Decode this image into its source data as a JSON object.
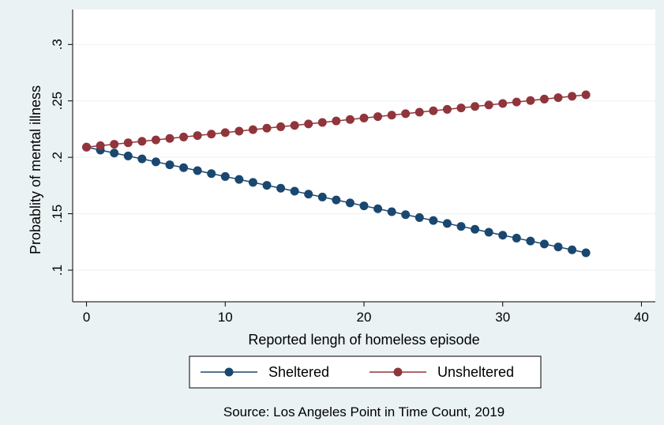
{
  "chart_data": {
    "type": "line",
    "title": "",
    "xlabel": "Reported lengh of homeless episode",
    "ylabel": "Probablity of mental illness",
    "xlim": [
      -1,
      41
    ],
    "ylim": [
      0.072,
      0.331
    ],
    "x_ticks": [
      0,
      10,
      20,
      30,
      40
    ],
    "x_tick_labels": [
      "0",
      "10",
      "20",
      "30",
      "40"
    ],
    "y_ticks": [
      0.1,
      0.15,
      0.2,
      0.25,
      0.3
    ],
    "y_tick_labels": [
      ".1",
      ".15",
      ".2",
      ".25",
      ".3"
    ],
    "grid": true,
    "legend_position": "bottom",
    "note": "Source: Los Angeles Point in Time Count, 2019",
    "x": [
      0,
      1,
      2,
      3,
      4,
      5,
      6,
      7,
      8,
      9,
      10,
      11,
      12,
      13,
      14,
      15,
      16,
      17,
      18,
      19,
      20,
      21,
      22,
      23,
      24,
      25,
      26,
      27,
      28,
      29,
      30,
      31,
      32,
      33,
      34,
      35,
      36
    ],
    "series": [
      {
        "name": "Sheltered",
        "color": "#1a476f",
        "values": [
          0.209,
          0.2064,
          0.2038,
          0.2012,
          0.1986,
          0.196,
          0.1934,
          0.1908,
          0.1882,
          0.1856,
          0.183,
          0.1804,
          0.1778,
          0.1752,
          0.1726,
          0.17,
          0.1674,
          0.1648,
          0.1622,
          0.1596,
          0.157,
          0.1544,
          0.1518,
          0.1492,
          0.1466,
          0.144,
          0.1414,
          0.1388,
          0.1362,
          0.1336,
          0.131,
          0.1284,
          0.1258,
          0.1232,
          0.1206,
          0.118,
          0.1154
        ]
      },
      {
        "name": "Unsheltered",
        "color": "#90353b",
        "values": [
          0.209,
          0.2103,
          0.2116,
          0.2129,
          0.2142,
          0.2154,
          0.2167,
          0.218,
          0.2193,
          0.2206,
          0.2219,
          0.2232,
          0.2245,
          0.2258,
          0.2271,
          0.2283,
          0.2296,
          0.2309,
          0.2322,
          0.2335,
          0.2348,
          0.2361,
          0.2374,
          0.2387,
          0.24,
          0.2412,
          0.2425,
          0.2438,
          0.2451,
          0.2464,
          0.2477,
          0.249,
          0.2503,
          0.2516,
          0.2529,
          0.2541,
          0.2554
        ]
      }
    ]
  }
}
